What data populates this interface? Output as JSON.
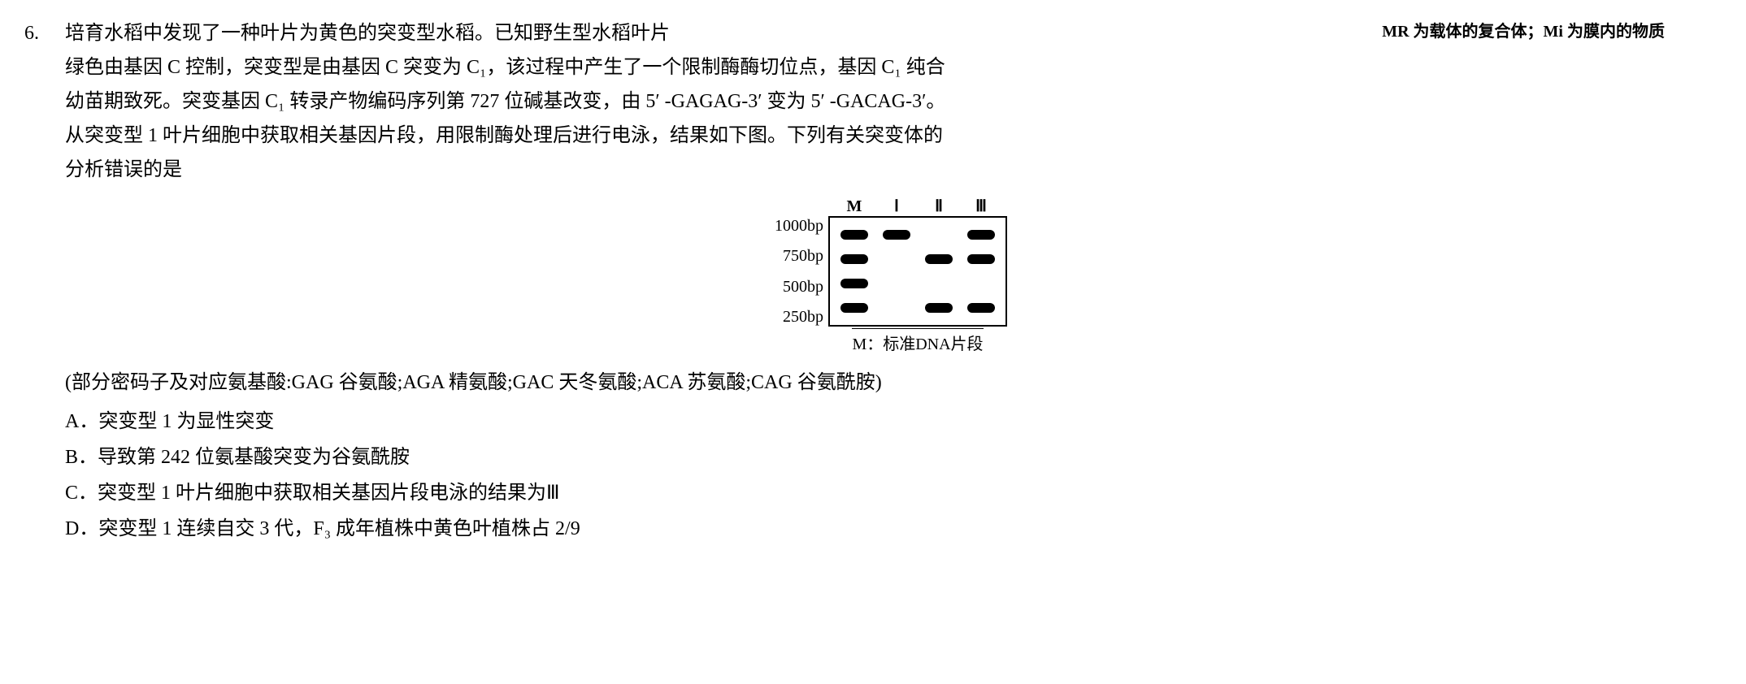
{
  "question_number": "6.",
  "annotation_text": "MR 为载体的复合体；Mi 为膜内的物质",
  "body_lines": [
    "培育水稻中发现了一种叶片为黄色的突变型水稻。已知野生型水稻叶片",
    "绿色由基因 C 控制，突变型是由基因 C 突变为 C₁，该过程中产生了一个限制酶酶切位点，基因 C₁ 纯合",
    "幼苗期致死。突变基因 C₁ 转录产物编码序列第 727 位碱基改变，由 5′ -GAGAG-3′ 变为 5′ -GACAG-3′。",
    "从突变型 1 叶片细胞中获取相关基因片段，用限制酶处理后进行电泳，结果如下图。下列有关突变体的",
    "分析错误的是"
  ],
  "gel": {
    "lane_headers": [
      "M",
      "Ⅰ",
      "Ⅱ",
      "Ⅲ"
    ],
    "size_labels": [
      "1000bp",
      "750bp",
      "500bp",
      "250bp"
    ],
    "caption": "M：标准DNA片段",
    "lanes": [
      [
        true,
        true,
        true,
        true
      ],
      [
        true,
        false,
        false,
        false
      ],
      [
        false,
        true,
        false,
        true
      ],
      [
        true,
        true,
        false,
        true
      ]
    ],
    "band_color": "#000000",
    "border_color": "#000000",
    "background": "#ffffff"
  },
  "codon_info": "(部分密码子及对应氨基酸:GAG 谷氨酸;AGA 精氨酸;GAC 天冬氨酸;ACA 苏氨酸;CAG 谷氨酰胺)",
  "options": {
    "A": "突变型 1 为显性突变",
    "B": "导致第 242 位氨基酸突变为谷氨酰胺",
    "C": "突变型 1 叶片细胞中获取相关基因片段电泳的结果为Ⅲ",
    "D": "突变型 1 连续自交 3 代，F₃ 成年植株中黄色叶植株占 2/9"
  }
}
